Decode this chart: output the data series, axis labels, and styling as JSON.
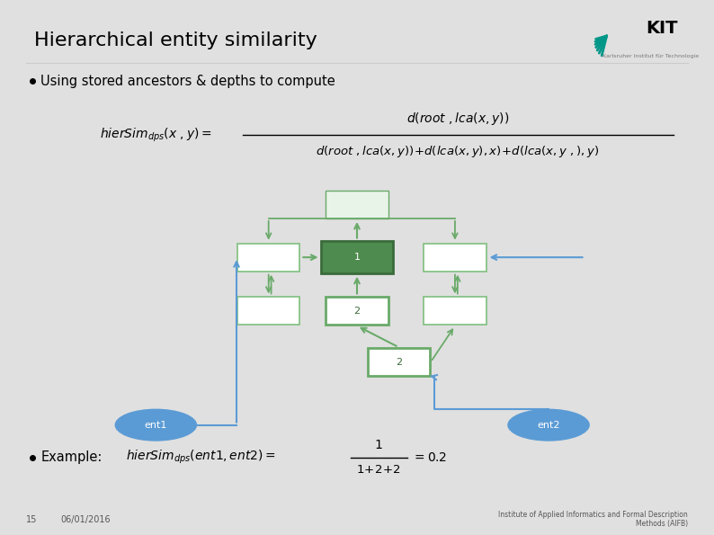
{
  "title": "Hierarchical entity similarity",
  "bg_color": "#e0e0e0",
  "slide_bg": "#ffffff",
  "bullet1": "Using stored ancestors & depths to compute",
  "footer_left_num": "15",
  "footer_left_date": "06/01/2016",
  "footer_right": "Institute of Applied Informatics and Formal Description\nMethods (AIFB)",
  "green_dark": "#3a6b3a",
  "green_fill": "#4e8b4e",
  "green_medium": "#6aaa6a",
  "green_light_fill": "#c8e6c8",
  "blue_arrow": "#5b9bd5",
  "blue_ellipse": "#5b9bd5",
  "box_outline": "#7fbf7f",
  "white": "#ffffff",
  "light_gray": "#f0f0f0",
  "root_fill": "#e8f4e8",
  "node_fill": "#f5f5f5"
}
